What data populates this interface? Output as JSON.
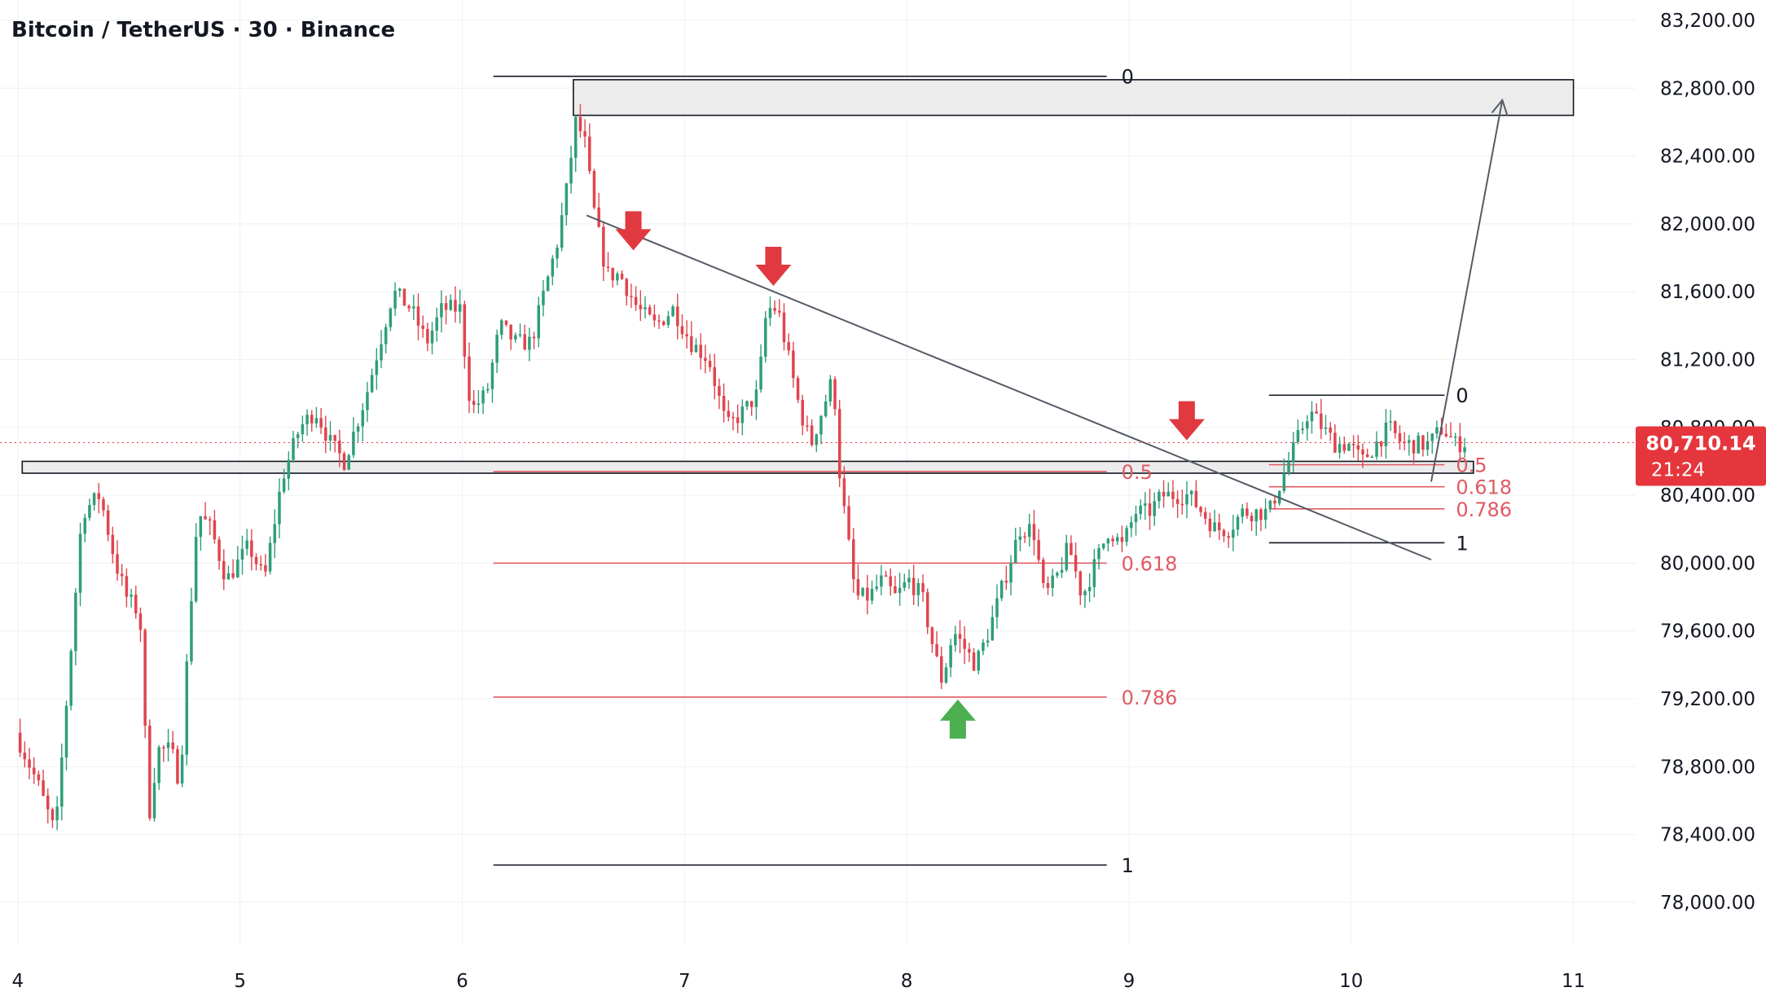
{
  "header": {
    "title": "Bitcoin / TetherUS · 30 · Binance"
  },
  "price_badge": {
    "price": "80,710.14",
    "countdown": "21:24",
    "color": "#e5363d"
  },
  "colors": {
    "up": "#2f9e7a",
    "down": "#e0454f",
    "fib_red": "#e05a63",
    "arrow_red": "#e0393f",
    "arrow_green": "#4caf50",
    "zone_fill": "#ececec",
    "line": "#131722",
    "grid": "#eef0f3"
  },
  "chart_data": {
    "type": "candlestick",
    "symbol": "BTC/USDT",
    "timeframe": "30",
    "exchange": "Binance",
    "x_ticks": [
      {
        "label": "4",
        "day": 4
      },
      {
        "label": "5",
        "day": 5
      },
      {
        "label": "6",
        "day": 6
      },
      {
        "label": "7",
        "day": 7
      },
      {
        "label": "8",
        "day": 8
      },
      {
        "label": "9",
        "day": 9
      },
      {
        "label": "10",
        "day": 10
      },
      {
        "label": "11",
        "day": 11
      }
    ],
    "y_ticks": [
      {
        "label": "78,000.00",
        "value": 78000
      },
      {
        "label": "78,400.00",
        "value": 78400
      },
      {
        "label": "78,800.00",
        "value": 78800
      },
      {
        "label": "79,200.00",
        "value": 79200
      },
      {
        "label": "79,600.00",
        "value": 79600
      },
      {
        "label": "80,000.00",
        "value": 80000
      },
      {
        "label": "80,400.00",
        "value": 80400
      },
      {
        "label": "80,800.00",
        "value": 80800
      },
      {
        "label": "81,200.00",
        "value": 81200
      },
      {
        "label": "81,600.00",
        "value": 81600
      },
      {
        "label": "82,000.00",
        "value": 82000
      },
      {
        "label": "82,400.00",
        "value": 82400
      },
      {
        "label": "82,800.00",
        "value": 82800
      },
      {
        "label": "83,200.00",
        "value": 83200
      }
    ],
    "current_price": 80710.14,
    "price_path": [
      [
        4.0,
        79000
      ],
      [
        4.1,
        78700
      ],
      [
        4.18,
        78400
      ],
      [
        4.25,
        79500
      ],
      [
        4.3,
        80300
      ],
      [
        4.38,
        80400
      ],
      [
        4.45,
        80000
      ],
      [
        4.5,
        79800
      ],
      [
        4.56,
        79700
      ],
      [
        4.6,
        78500
      ],
      [
        4.64,
        78900
      ],
      [
        4.7,
        78900
      ],
      [
        4.74,
        78700
      ],
      [
        4.78,
        79600
      ],
      [
        4.82,
        80300
      ],
      [
        4.88,
        80200
      ],
      [
        4.95,
        79900
      ],
      [
        5.05,
        80100
      ],
      [
        5.12,
        79900
      ],
      [
        5.2,
        80500
      ],
      [
        5.28,
        80800
      ],
      [
        5.35,
        80900
      ],
      [
        5.42,
        80700
      ],
      [
        5.48,
        80600
      ],
      [
        5.53,
        80800
      ],
      [
        5.58,
        81000
      ],
      [
        5.64,
        81300
      ],
      [
        5.7,
        81600
      ],
      [
        5.78,
        81500
      ],
      [
        5.85,
        81300
      ],
      [
        5.92,
        81500
      ],
      [
        6.0,
        81500
      ],
      [
        6.05,
        80900
      ],
      [
        6.12,
        81000
      ],
      [
        6.18,
        81400
      ],
      [
        6.25,
        81300
      ],
      [
        6.32,
        81300
      ],
      [
        6.38,
        81600
      ],
      [
        6.44,
        81900
      ],
      [
        6.48,
        82200
      ],
      [
        6.52,
        82600
      ],
      [
        6.56,
        82500
      ],
      [
        6.6,
        82100
      ],
      [
        6.66,
        81700
      ],
      [
        6.72,
        81700
      ],
      [
        6.8,
        81500
      ],
      [
        6.88,
        81400
      ],
      [
        6.96,
        81500
      ],
      [
        7.04,
        81300
      ],
      [
        7.12,
        81200
      ],
      [
        7.2,
        80800
      ],
      [
        7.28,
        80900
      ],
      [
        7.34,
        81000
      ],
      [
        7.38,
        81500
      ],
      [
        7.43,
        81500
      ],
      [
        7.48,
        81200
      ],
      [
        7.53,
        80900
      ],
      [
        7.58,
        80700
      ],
      [
        7.63,
        80900
      ],
      [
        7.68,
        81100
      ],
      [
        7.71,
        80500
      ],
      [
        7.74,
        80200
      ],
      [
        7.78,
        79800
      ],
      [
        7.84,
        79800
      ],
      [
        7.9,
        79900
      ],
      [
        7.96,
        79800
      ],
      [
        8.02,
        79900
      ],
      [
        8.08,
        79800
      ],
      [
        8.13,
        79500
      ],
      [
        8.17,
        79300
      ],
      [
        8.22,
        79600
      ],
      [
        8.27,
        79500
      ],
      [
        8.32,
        79400
      ],
      [
        8.38,
        79600
      ],
      [
        8.45,
        79900
      ],
      [
        8.52,
        80200
      ],
      [
        8.58,
        80200
      ],
      [
        8.63,
        79800
      ],
      [
        8.68,
        79900
      ],
      [
        8.74,
        80100
      ],
      [
        8.8,
        79800
      ],
      [
        8.86,
        80000
      ],
      [
        8.92,
        80200
      ],
      [
        8.98,
        80100
      ],
      [
        9.04,
        80300
      ],
      [
        9.1,
        80300
      ],
      [
        9.16,
        80400
      ],
      [
        9.22,
        80400
      ],
      [
        9.28,
        80400
      ],
      [
        9.34,
        80300
      ],
      [
        9.4,
        80200
      ],
      [
        9.46,
        80200
      ],
      [
        9.52,
        80300
      ],
      [
        9.58,
        80300
      ],
      [
        9.64,
        80300
      ],
      [
        9.7,
        80500
      ],
      [
        9.76,
        80700
      ],
      [
        9.82,
        80900
      ],
      [
        9.88,
        80800
      ],
      [
        9.94,
        80700
      ],
      [
        10.0,
        80700
      ],
      [
        10.06,
        80600
      ],
      [
        10.12,
        80700
      ],
      [
        10.18,
        80800
      ],
      [
        10.24,
        80700
      ],
      [
        10.3,
        80700
      ],
      [
        10.36,
        80700
      ],
      [
        10.42,
        80800
      ],
      [
        10.48,
        80700
      ],
      [
        10.52,
        80710
      ]
    ],
    "horizontal_lines": [
      {
        "label": "0",
        "price": 82870,
        "x_from": 6.14,
        "x_to": 8.9,
        "color": "#131722"
      },
      {
        "label": "0.5",
        "price": 80540,
        "x_from": 6.14,
        "x_to": 8.9,
        "color": "#e05a63"
      },
      {
        "label": "0.618",
        "price": 80000,
        "x_from": 6.14,
        "x_to": 8.9,
        "color": "#e05a63"
      },
      {
        "label": "0.786",
        "price": 79210,
        "x_from": 6.14,
        "x_to": 8.9,
        "color": "#e05a63"
      },
      {
        "label": "1",
        "price": 78220,
        "x_from": 6.14,
        "x_to": 8.9,
        "color": "#131722"
      },
      {
        "label": "0",
        "price": 80990,
        "x_from": 9.63,
        "x_to": 10.42,
        "color": "#131722"
      },
      {
        "label": "0.5",
        "price": 80580,
        "x_from": 9.63,
        "x_to": 10.42,
        "color": "#e05a63"
      },
      {
        "label": "0.618",
        "price": 80450,
        "x_from": 9.63,
        "x_to": 10.42,
        "color": "#e05a63"
      },
      {
        "label": "0.786",
        "price": 80320,
        "x_from": 9.63,
        "x_to": 10.42,
        "color": "#e05a63"
      },
      {
        "label": "1",
        "price": 80120,
        "x_from": 9.63,
        "x_to": 10.42,
        "color": "#131722"
      }
    ],
    "zones": [
      {
        "x_from": 6.5,
        "x_to": 11.0,
        "price_top": 82850,
        "price_bottom": 82640
      },
      {
        "x_from": 4.02,
        "x_to": 10.55,
        "price_top": 80600,
        "price_bottom": 80530
      }
    ],
    "trendline": {
      "from": [
        6.56,
        82050
      ],
      "to": [
        10.36,
        80020
      ]
    },
    "projection_arrow": {
      "from": [
        10.36,
        80480
      ],
      "to": [
        10.68,
        82730
      ]
    },
    "signal_arrows": [
      {
        "direction": "down",
        "x": 6.77,
        "price": 81950
      },
      {
        "direction": "down",
        "x": 7.4,
        "price": 81740
      },
      {
        "direction": "down",
        "x": 9.26,
        "price": 80830
      },
      {
        "direction": "up",
        "x": 8.23,
        "price": 79090
      }
    ],
    "y_range": [
      77750,
      83320
    ],
    "x_range": [
      3.92,
      11.28
    ]
  }
}
